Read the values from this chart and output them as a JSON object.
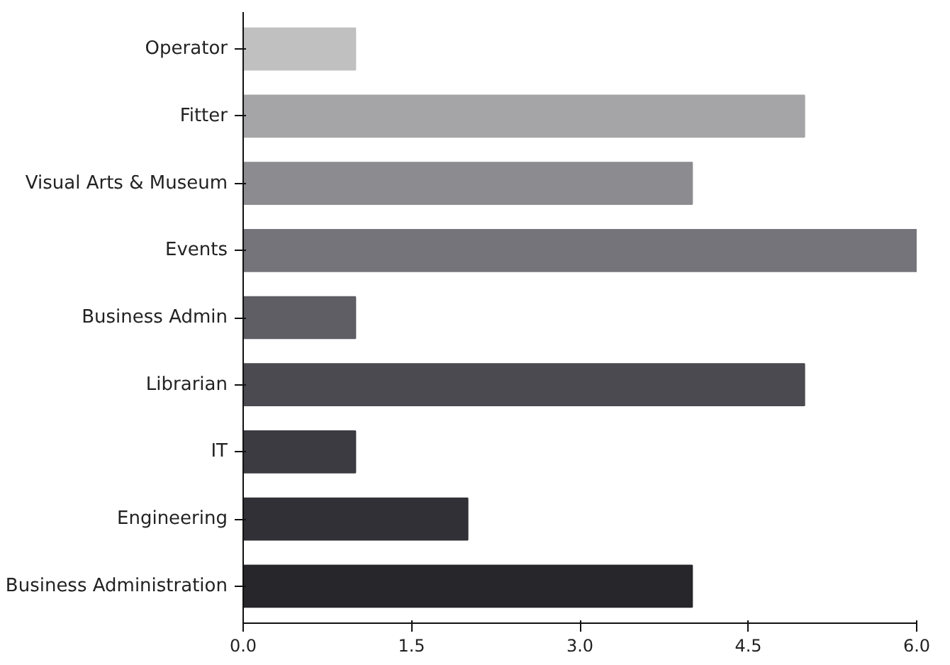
{
  "chart_data": {
    "type": "bar",
    "orientation": "horizontal",
    "categories": [
      "Operator",
      "Fitter",
      "Visual Arts & Museum",
      "Events",
      "Business Admin",
      "Librarian",
      "IT",
      "Engineering",
      "Business Administration"
    ],
    "values": [
      1,
      5,
      4,
      6,
      1,
      5,
      1,
      2,
      4
    ],
    "colors": [
      "#c0c0c0",
      "#a5a5a7",
      "#8c8b90",
      "#75747a",
      "#5f5e64",
      "#4b4a50",
      "#3c3b42",
      "#303036",
      "#26262b"
    ],
    "xlim": [
      0,
      6
    ],
    "xticks": [
      {
        "value": 0,
        "label": "0.0"
      },
      {
        "value": 1.5,
        "label": "1.5"
      },
      {
        "value": 3,
        "label": "3.0"
      },
      {
        "value": 4.5,
        "label": "4.5"
      },
      {
        "value": 6,
        "label": "6.0"
      }
    ],
    "grid": false
  }
}
